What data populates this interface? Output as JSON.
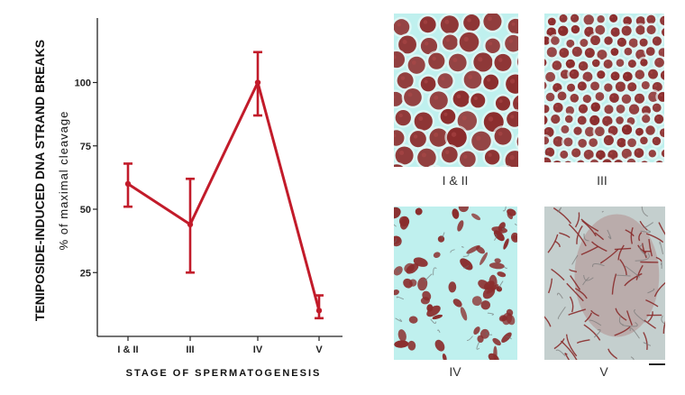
{
  "chart_data": {
    "type": "line",
    "ylabel_main": "TENIPOSIDE-INDUCED DNA STRAND BREAKS",
    "ylabel_sub": "% of maximal cleavage",
    "xlabel": "STAGE OF SPERMATOGENESIS",
    "categories": [
      "I & II",
      "III",
      "IV",
      "V"
    ],
    "yticks": [
      25,
      50,
      75,
      100
    ],
    "ylim": [
      0,
      125
    ],
    "series": [
      {
        "values": [
          60,
          44,
          100,
          10
        ],
        "err_upper": [
          68,
          62,
          112,
          16
        ],
        "err_lower": [
          51,
          25,
          87,
          7
        ]
      }
    ],
    "line_color": "#c21b2a",
    "grid": false
  },
  "micrographs": [
    {
      "label": "I & II",
      "texture": "large-cells"
    },
    {
      "label": "III",
      "texture": "small-cells"
    },
    {
      "label": "IV",
      "texture": "irregular-cells"
    },
    {
      "label": "V",
      "texture": "fibers"
    }
  ],
  "colors": {
    "panel_bg": "#bff0ee",
    "stain": "#8a2c2c"
  }
}
